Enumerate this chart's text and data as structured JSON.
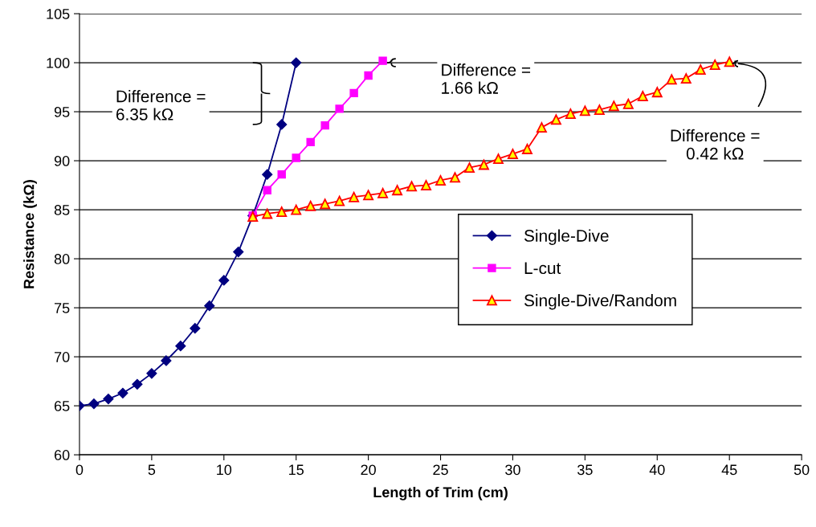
{
  "chart_data": {
    "type": "line",
    "xlabel": "Length of Trim (cm)",
    "ylabel": "Resistance (kΩ)",
    "xlim": [
      0,
      50
    ],
    "xticks": [
      0,
      5,
      10,
      15,
      20,
      25,
      30,
      35,
      40,
      45,
      50
    ],
    "ylim": [
      60,
      105
    ],
    "yticks": [
      60,
      65,
      70,
      75,
      80,
      85,
      90,
      95,
      100,
      105
    ],
    "grid": "y",
    "legend": "center right",
    "series": [
      {
        "name": "Single-Dive",
        "color": "#000080",
        "marker": "diamond",
        "x": [
          0,
          1,
          2,
          3,
          4,
          5,
          6,
          7,
          8,
          9,
          10,
          11,
          12,
          13,
          14,
          15
        ],
        "values": [
          65.0,
          65.2,
          65.7,
          66.3,
          67.2,
          68.3,
          69.6,
          71.1,
          72.9,
          75.2,
          77.8,
          80.7,
          84.4,
          88.6,
          93.7,
          100.0
        ]
      },
      {
        "name": "L-cut",
        "color": "#ff00ff",
        "marker": "square",
        "x": [
          12,
          13,
          14,
          15,
          16,
          17,
          18,
          19,
          20,
          21
        ],
        "values": [
          84.4,
          87.0,
          88.6,
          90.3,
          91.9,
          93.6,
          95.3,
          96.9,
          98.7,
          100.2
        ]
      },
      {
        "name": "Single-Dive/Random",
        "color": "#ff0000",
        "marker": "triangle",
        "x": [
          12,
          13,
          14,
          15,
          16,
          17,
          18,
          19,
          20,
          21,
          22,
          23,
          24,
          25,
          26,
          27,
          28,
          29,
          30,
          31,
          32,
          33,
          34,
          35,
          36,
          37,
          38,
          39,
          40,
          41,
          42,
          43,
          44,
          45
        ],
        "values": [
          84.3,
          84.6,
          84.8,
          85.0,
          85.4,
          85.6,
          85.9,
          86.3,
          86.5,
          86.7,
          87.0,
          87.4,
          87.5,
          88.0,
          88.3,
          89.3,
          89.6,
          90.2,
          90.7,
          91.2,
          93.4,
          94.2,
          94.8,
          95.1,
          95.2,
          95.6,
          95.8,
          96.6,
          97.0,
          98.3,
          98.4,
          99.3,
          99.8,
          100.1
        ]
      }
    ],
    "annotations": [
      "Difference =\n6.35 kΩ",
      "Difference =\n1.66 kΩ",
      "Difference =\n0.42 kΩ"
    ]
  }
}
